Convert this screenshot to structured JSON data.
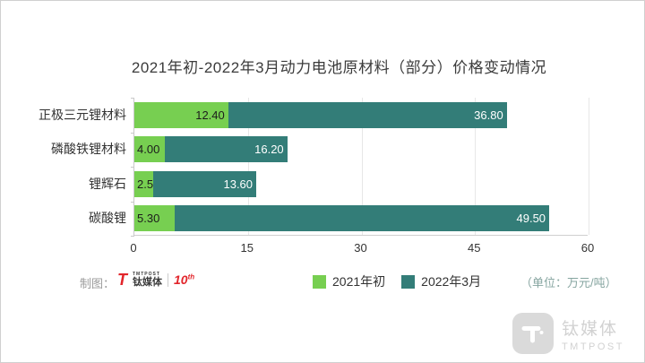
{
  "chart_data": {
    "type": "bar",
    "orientation": "horizontal",
    "stacked": true,
    "title": "2021年初-2022年3月动力电池原材料（部分）价格变动情况",
    "categories": [
      "正极三元锂材料",
      "磷酸铁锂材料",
      "锂辉石",
      "碳酸锂"
    ],
    "series": [
      {
        "name": "2021年初",
        "color": "#77cf51",
        "label_color": "#1c1c1c",
        "values": [
          12.4,
          4.0,
          2.5,
          5.3
        ],
        "labels": [
          "12.40",
          "4.00",
          "2.50",
          "5.30"
        ]
      },
      {
        "name": "2022年3月",
        "color": "#337d78",
        "label_color": "#ffffff",
        "values": [
          36.8,
          16.2,
          13.6,
          49.5
        ],
        "labels": [
          "36.80",
          "16.20",
          "13.60",
          "49.50"
        ]
      }
    ],
    "xlim": [
      0,
      60
    ],
    "xticks": [
      "0",
      "15",
      "30",
      "45",
      "60"
    ],
    "grid": "vertical",
    "legend_position": "bottom",
    "unit_note": "（单位：万元/吨）"
  },
  "footer": {
    "credit_label": "制图：",
    "logo": {
      "mark": "T",
      "brand_en": "TMTPOST",
      "brand_cn": "钛媒体",
      "badge": "10",
      "badge_sup": "th"
    }
  },
  "watermark": {
    "mark": "T",
    "brand_cn": "钛媒体",
    "brand_en": "TMTPOST"
  }
}
